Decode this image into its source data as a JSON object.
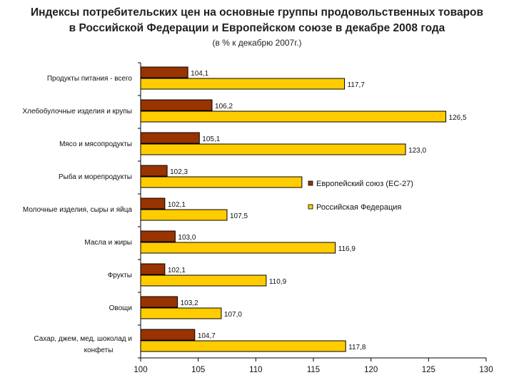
{
  "chart_data": {
    "type": "bar",
    "orientation": "horizontal",
    "title_line1": "Индексы потребительских цен на основные группы продовольственных товаров",
    "title_line2": "в Российской Федерации и Европейском союзе в декабре 2008 года",
    "subtitle": "(в % к декабрю 2007г.)",
    "categories": [
      [
        "Продукты питания - всего"
      ],
      [
        "Хлебобулочные изделия и крупы"
      ],
      [
        "Мясо и мясопродукты"
      ],
      [
        "Рыба и морепродукты"
      ],
      [
        "Молочные изделия, сыры и яйца"
      ],
      [
        "Масла и жиры"
      ],
      [
        "Фрукты"
      ],
      [
        "Овощи"
      ],
      [
        "Сахар, джем, мед, шоколад и",
        "конфеты"
      ]
    ],
    "series": [
      {
        "name": "Европейский союз (ЕС-27)",
        "color": "#993300",
        "values": [
          104.1,
          106.2,
          105.1,
          102.3,
          102.1,
          103.0,
          102.1,
          103.2,
          104.7
        ],
        "labels": [
          "104,1",
          "106,2",
          "105,1",
          "102,3",
          "102,1",
          "103,0",
          "102,1",
          "103,2",
          "104,7"
        ]
      },
      {
        "name": "Российская Федерация",
        "color": "#ffcc00",
        "values": [
          117.7,
          126.5,
          123.0,
          114.0,
          107.5,
          116.9,
          110.9,
          107.0,
          117.8
        ],
        "labels": [
          "117,7",
          "126,5",
          "123,0",
          "",
          "107,5",
          "116,9",
          "110,9",
          "107,0",
          "117,8"
        ]
      }
    ],
    "xlim": [
      100,
      130
    ],
    "xticks": [
      "100",
      "105",
      "110",
      "115",
      "120",
      "125",
      "130"
    ],
    "grid": false,
    "legend_position": "right-middle"
  }
}
